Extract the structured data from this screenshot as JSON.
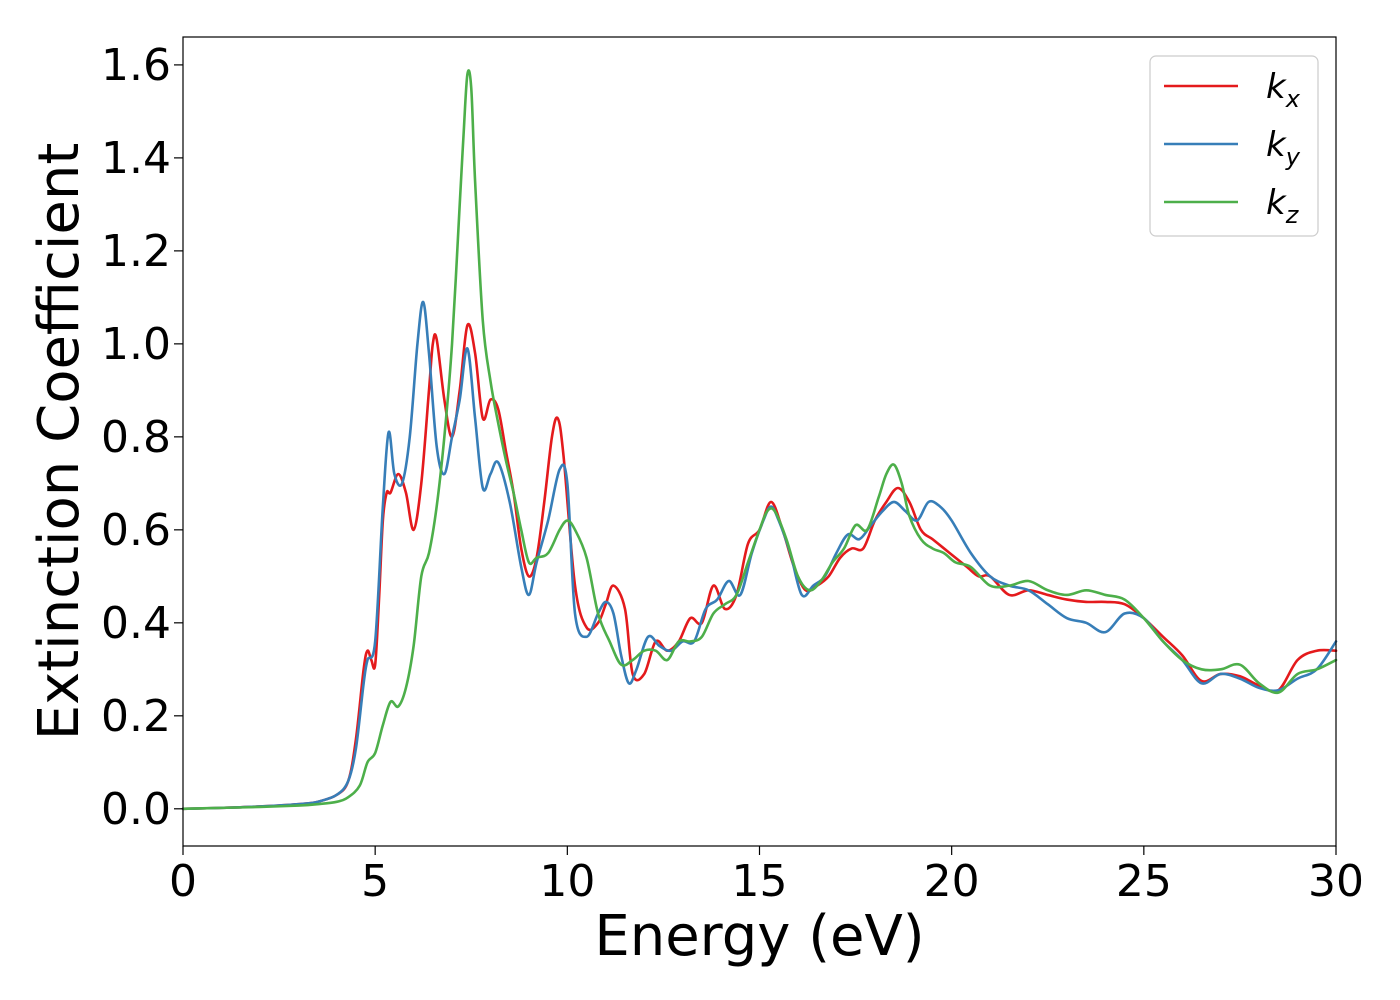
{
  "chart_data": {
    "type": "line",
    "xlabel": "Energy (eV)",
    "ylabel": "Extinction Coefficient",
    "xlim": [
      0,
      30
    ],
    "ylim": [
      -0.08,
      1.66
    ],
    "xticks": [
      0,
      5,
      10,
      15,
      20,
      25,
      30
    ],
    "yticks": [
      0.0,
      0.2,
      0.4,
      0.6,
      0.8,
      1.0,
      1.2,
      1.4,
      1.6
    ],
    "xtick_labels": [
      "0",
      "5",
      "10",
      "15",
      "20",
      "25",
      "30"
    ],
    "ytick_labels": [
      "0.0",
      "0.2",
      "0.4",
      "0.6",
      "0.8",
      "1.0",
      "1.2",
      "1.4",
      "1.6"
    ],
    "grid": false,
    "legend_position": "top-right",
    "series": [
      {
        "name": "k",
        "subscript": "x",
        "color": "#e41a1c",
        "x": [
          0,
          1,
          2,
          3,
          3.5,
          4,
          4.3,
          4.5,
          4.7,
          4.8,
          4.9,
          5.0,
          5.1,
          5.2,
          5.3,
          5.4,
          5.6,
          5.8,
          6.0,
          6.2,
          6.4,
          6.5,
          6.6,
          6.8,
          7.0,
          7.2,
          7.4,
          7.6,
          7.8,
          8.0,
          8.2,
          8.4,
          8.6,
          8.8,
          9.0,
          9.2,
          9.4,
          9.6,
          9.75,
          9.9,
          10.2,
          10.5,
          10.8,
          11.0,
          11.2,
          11.5,
          11.7,
          12.0,
          12.3,
          12.6,
          12.9,
          13.2,
          13.5,
          13.8,
          14.1,
          14.4,
          14.7,
          15.0,
          15.3,
          15.6,
          15.9,
          16.2,
          16.5,
          16.8,
          17.1,
          17.4,
          17.7,
          18.0,
          18.3,
          18.6,
          18.9,
          19.2,
          19.5,
          19.8,
          20.1,
          20.4,
          20.7,
          21.0,
          21.5,
          22.0,
          22.5,
          23.0,
          23.5,
          24.0,
          24.5,
          25.0,
          25.5,
          26.0,
          26.5,
          27.0,
          27.5,
          28.0,
          28.5,
          29.0,
          29.5,
          30.0
        ],
        "y": [
          0.0,
          0.002,
          0.005,
          0.01,
          0.015,
          0.03,
          0.06,
          0.15,
          0.3,
          0.34,
          0.32,
          0.31,
          0.45,
          0.62,
          0.68,
          0.68,
          0.72,
          0.68,
          0.6,
          0.7,
          0.9,
          1.0,
          1.01,
          0.88,
          0.8,
          0.9,
          1.04,
          0.98,
          0.84,
          0.88,
          0.86,
          0.77,
          0.68,
          0.56,
          0.5,
          0.54,
          0.66,
          0.8,
          0.84,
          0.76,
          0.48,
          0.39,
          0.4,
          0.44,
          0.48,
          0.43,
          0.29,
          0.29,
          0.36,
          0.34,
          0.36,
          0.41,
          0.4,
          0.48,
          0.43,
          0.46,
          0.57,
          0.6,
          0.66,
          0.6,
          0.52,
          0.47,
          0.48,
          0.5,
          0.54,
          0.56,
          0.56,
          0.62,
          0.66,
          0.69,
          0.66,
          0.6,
          0.58,
          0.56,
          0.54,
          0.52,
          0.5,
          0.5,
          0.46,
          0.47,
          0.46,
          0.45,
          0.445,
          0.445,
          0.44,
          0.41,
          0.37,
          0.33,
          0.275,
          0.29,
          0.285,
          0.265,
          0.255,
          0.32,
          0.34,
          0.34
        ]
      },
      {
        "name": "k",
        "subscript": "y",
        "color": "#377eb8",
        "x": [
          0,
          1,
          2,
          3,
          3.5,
          4,
          4.3,
          4.5,
          4.7,
          4.8,
          5.0,
          5.2,
          5.35,
          5.5,
          5.7,
          5.9,
          6.1,
          6.25,
          6.4,
          6.6,
          6.8,
          7.0,
          7.2,
          7.4,
          7.6,
          7.8,
          8.0,
          8.2,
          8.5,
          8.8,
          9.0,
          9.2,
          9.5,
          9.8,
          10.0,
          10.2,
          10.5,
          10.8,
          11.0,
          11.2,
          11.4,
          11.6,
          11.8,
          12.1,
          12.4,
          12.7,
          13.0,
          13.3,
          13.6,
          13.9,
          14.2,
          14.5,
          14.8,
          15.1,
          15.3,
          15.5,
          15.8,
          16.1,
          16.4,
          16.7,
          17.0,
          17.3,
          17.6,
          17.9,
          18.2,
          18.5,
          18.8,
          19.1,
          19.4,
          19.7,
          20.0,
          20.5,
          21.0,
          21.5,
          22.0,
          22.5,
          23.0,
          23.5,
          24.0,
          24.5,
          25.0,
          25.5,
          26.0,
          26.5,
          27.0,
          27.5,
          28.0,
          28.5,
          29.0,
          29.5,
          30.0
        ],
        "y": [
          0.0,
          0.002,
          0.005,
          0.01,
          0.015,
          0.03,
          0.06,
          0.13,
          0.27,
          0.32,
          0.36,
          0.65,
          0.81,
          0.72,
          0.7,
          0.8,
          1.0,
          1.09,
          0.98,
          0.78,
          0.72,
          0.8,
          0.88,
          0.99,
          0.84,
          0.69,
          0.72,
          0.745,
          0.66,
          0.52,
          0.46,
          0.53,
          0.62,
          0.73,
          0.7,
          0.42,
          0.37,
          0.42,
          0.445,
          0.42,
          0.33,
          0.27,
          0.3,
          0.37,
          0.35,
          0.34,
          0.36,
          0.36,
          0.43,
          0.45,
          0.49,
          0.46,
          0.55,
          0.62,
          0.65,
          0.62,
          0.55,
          0.46,
          0.48,
          0.5,
          0.55,
          0.59,
          0.58,
          0.61,
          0.64,
          0.66,
          0.64,
          0.62,
          0.66,
          0.65,
          0.62,
          0.55,
          0.5,
          0.48,
          0.47,
          0.44,
          0.41,
          0.4,
          0.38,
          0.42,
          0.41,
          0.36,
          0.32,
          0.27,
          0.29,
          0.28,
          0.26,
          0.255,
          0.28,
          0.3,
          0.36
        ]
      },
      {
        "name": "k",
        "subscript": "z",
        "color": "#4daf4a",
        "x": [
          0,
          1,
          2,
          3,
          3.5,
          4,
          4.3,
          4.6,
          4.8,
          5.0,
          5.2,
          5.4,
          5.6,
          5.8,
          6.0,
          6.2,
          6.4,
          6.6,
          6.8,
          7.0,
          7.2,
          7.3,
          7.4,
          7.5,
          7.6,
          7.8,
          8.0,
          8.2,
          8.4,
          8.6,
          8.8,
          9.0,
          9.2,
          9.5,
          9.8,
          10.0,
          10.2,
          10.5,
          10.8,
          11.1,
          11.4,
          11.7,
          12.0,
          12.3,
          12.6,
          12.9,
          13.2,
          13.5,
          13.8,
          14.1,
          14.4,
          14.7,
          15.0,
          15.2,
          15.4,
          15.7,
          16.0,
          16.3,
          16.6,
          16.9,
          17.2,
          17.5,
          17.8,
          18.1,
          18.3,
          18.5,
          18.7,
          18.9,
          19.2,
          19.5,
          19.8,
          20.1,
          20.5,
          21.0,
          21.5,
          22.0,
          22.5,
          23.0,
          23.5,
          24.0,
          24.5,
          25.0,
          25.5,
          26.0,
          26.5,
          27.0,
          27.5,
          28.0,
          28.5,
          29.0,
          29.5,
          30.0
        ],
        "y": [
          0.0,
          0.002,
          0.004,
          0.007,
          0.01,
          0.015,
          0.025,
          0.05,
          0.1,
          0.12,
          0.18,
          0.23,
          0.22,
          0.26,
          0.35,
          0.5,
          0.55,
          0.65,
          0.8,
          1.0,
          1.3,
          1.45,
          1.58,
          1.55,
          1.35,
          1.05,
          0.92,
          0.83,
          0.75,
          0.68,
          0.6,
          0.53,
          0.54,
          0.55,
          0.6,
          0.62,
          0.6,
          0.54,
          0.42,
          0.36,
          0.31,
          0.32,
          0.34,
          0.34,
          0.32,
          0.36,
          0.36,
          0.37,
          0.42,
          0.44,
          0.46,
          0.53,
          0.6,
          0.64,
          0.64,
          0.58,
          0.5,
          0.47,
          0.49,
          0.53,
          0.56,
          0.61,
          0.6,
          0.67,
          0.72,
          0.74,
          0.7,
          0.63,
          0.58,
          0.56,
          0.55,
          0.53,
          0.52,
          0.48,
          0.48,
          0.49,
          0.47,
          0.46,
          0.47,
          0.46,
          0.45,
          0.41,
          0.36,
          0.32,
          0.3,
          0.3,
          0.31,
          0.27,
          0.25,
          0.29,
          0.3,
          0.32
        ]
      }
    ]
  }
}
